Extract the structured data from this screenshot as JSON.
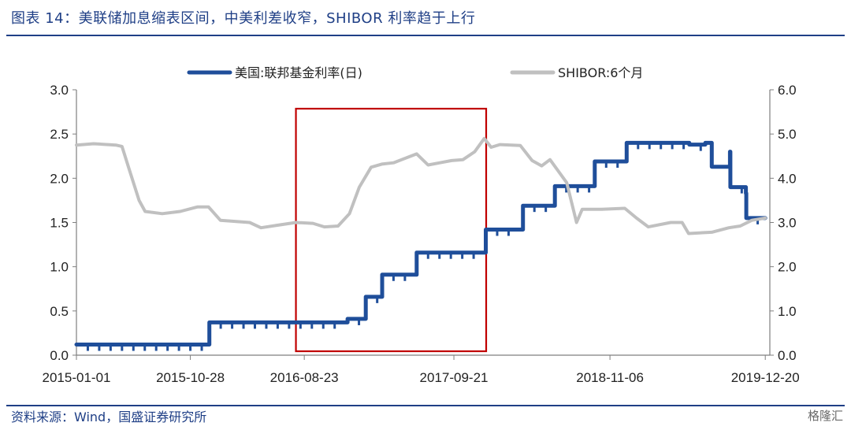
{
  "header": {
    "title": "图表 14：美联储加息缩表区间，中美利差收窄，SHIBOR 利率趋于上行"
  },
  "footer": {
    "source": "资料来源：Wind，国盛证券研究所",
    "watermark": "格隆汇"
  },
  "chart_data": {
    "type": "line",
    "title": "图表 14：美联储加息缩表区间，中美利差收窄，SHIBOR 利率趋于上行",
    "x_ticks": [
      "2015-01-01",
      "2015-10-28",
      "2016-08-23",
      "2017-09-21",
      "2018-11-06",
      "2019-12-20"
    ],
    "x_range": [
      "2015-01-01",
      "2020-01-01"
    ],
    "y_left": {
      "ylim": [
        0,
        3.0
      ],
      "ticks": [
        "0.0",
        "0.5",
        "1.0",
        "1.5",
        "2.0",
        "2.5",
        "3.0"
      ]
    },
    "y_right": {
      "ylim": [
        0,
        6.0
      ],
      "ticks": [
        "0.0",
        "1.0",
        "2.0",
        "3.0",
        "4.0",
        "5.0",
        "6.0"
      ]
    },
    "legend_position": "top",
    "highlight_box": {
      "from": "2016-08-01",
      "to": "2017-12-15",
      "color": "#c00000"
    },
    "series": [
      {
        "name": "美国:联邦基金利率(日)",
        "axis": "left",
        "color": "#1f4e9a",
        "points": [
          [
            "2015-01-01",
            0.12
          ],
          [
            "2015-12-16",
            0.12
          ],
          [
            "2015-12-17",
            0.37
          ],
          [
            "2016-12-14",
            0.37
          ],
          [
            "2016-12-15",
            0.41
          ],
          [
            "2017-01-31",
            0.41
          ],
          [
            "2017-02-01",
            0.66
          ],
          [
            "2017-03-15",
            0.66
          ],
          [
            "2017-03-16",
            0.91
          ],
          [
            "2017-06-14",
            0.91
          ],
          [
            "2017-06-15",
            1.16
          ],
          [
            "2017-12-13",
            1.16
          ],
          [
            "2017-12-14",
            1.42
          ],
          [
            "2018-03-21",
            1.42
          ],
          [
            "2018-03-22",
            1.69
          ],
          [
            "2018-06-13",
            1.69
          ],
          [
            "2018-06-14",
            1.91
          ],
          [
            "2018-09-26",
            1.91
          ],
          [
            "2018-09-27",
            2.19
          ],
          [
            "2018-12-19",
            2.19
          ],
          [
            "2018-12-20",
            2.4
          ],
          [
            "2019-05-31",
            2.4
          ],
          [
            "2019-06-03",
            2.38
          ],
          [
            "2019-07-15",
            2.4
          ],
          [
            "2019-07-31",
            2.4
          ],
          [
            "2019-08-01",
            2.13
          ],
          [
            "2019-09-16",
            2.13
          ],
          [
            "2019-09-18",
            2.3
          ],
          [
            "2019-09-19",
            1.9
          ],
          [
            "2019-10-30",
            1.83
          ],
          [
            "2019-10-31",
            1.55
          ],
          [
            "2019-12-20",
            1.55
          ]
        ]
      },
      {
        "name": "SHIBOR:6个月",
        "axis": "right",
        "color": "#c0c0c0",
        "points": [
          [
            "2015-01-01",
            4.75
          ],
          [
            "2015-02-15",
            4.78
          ],
          [
            "2015-04-15",
            4.75
          ],
          [
            "2015-05-01",
            4.72
          ],
          [
            "2015-05-20",
            4.2
          ],
          [
            "2015-06-15",
            3.5
          ],
          [
            "2015-07-01",
            3.25
          ],
          [
            "2015-08-15",
            3.2
          ],
          [
            "2015-10-01",
            3.25
          ],
          [
            "2015-11-15",
            3.35
          ],
          [
            "2015-12-15",
            3.35
          ],
          [
            "2016-01-15",
            3.05
          ],
          [
            "2016-04-01",
            3.0
          ],
          [
            "2016-05-01",
            2.88
          ],
          [
            "2016-06-15",
            2.94
          ],
          [
            "2016-08-01",
            3.0
          ],
          [
            "2016-09-15",
            2.98
          ],
          [
            "2016-10-15",
            2.9
          ],
          [
            "2016-11-20",
            2.92
          ],
          [
            "2016-12-20",
            3.2
          ],
          [
            "2017-01-15",
            3.8
          ],
          [
            "2017-02-15",
            4.25
          ],
          [
            "2017-03-15",
            4.32
          ],
          [
            "2017-04-15",
            4.35
          ],
          [
            "2017-06-15",
            4.55
          ],
          [
            "2017-07-15",
            4.3
          ],
          [
            "2017-08-15",
            4.35
          ],
          [
            "2017-09-15",
            4.4
          ],
          [
            "2017-10-15",
            4.42
          ],
          [
            "2017-11-15",
            4.6
          ],
          [
            "2017-12-10",
            4.9
          ],
          [
            "2017-12-28",
            4.7
          ],
          [
            "2018-01-20",
            4.76
          ],
          [
            "2018-03-15",
            4.74
          ],
          [
            "2018-04-15",
            4.4
          ],
          [
            "2018-05-10",
            4.28
          ],
          [
            "2018-06-01",
            4.42
          ],
          [
            "2018-07-15",
            3.9
          ],
          [
            "2018-08-10",
            3.0
          ],
          [
            "2018-08-25",
            3.3
          ],
          [
            "2018-10-15",
            3.3
          ],
          [
            "2018-12-15",
            3.32
          ],
          [
            "2019-01-15",
            3.1
          ],
          [
            "2019-02-15",
            2.9
          ],
          [
            "2019-04-15",
            3.0
          ],
          [
            "2019-05-15",
            3.0
          ],
          [
            "2019-06-01",
            2.75
          ],
          [
            "2019-08-01",
            2.78
          ],
          [
            "2019-09-15",
            2.88
          ],
          [
            "2019-10-15",
            2.92
          ],
          [
            "2019-11-15",
            3.05
          ],
          [
            "2019-12-20",
            3.1
          ]
        ]
      }
    ]
  }
}
